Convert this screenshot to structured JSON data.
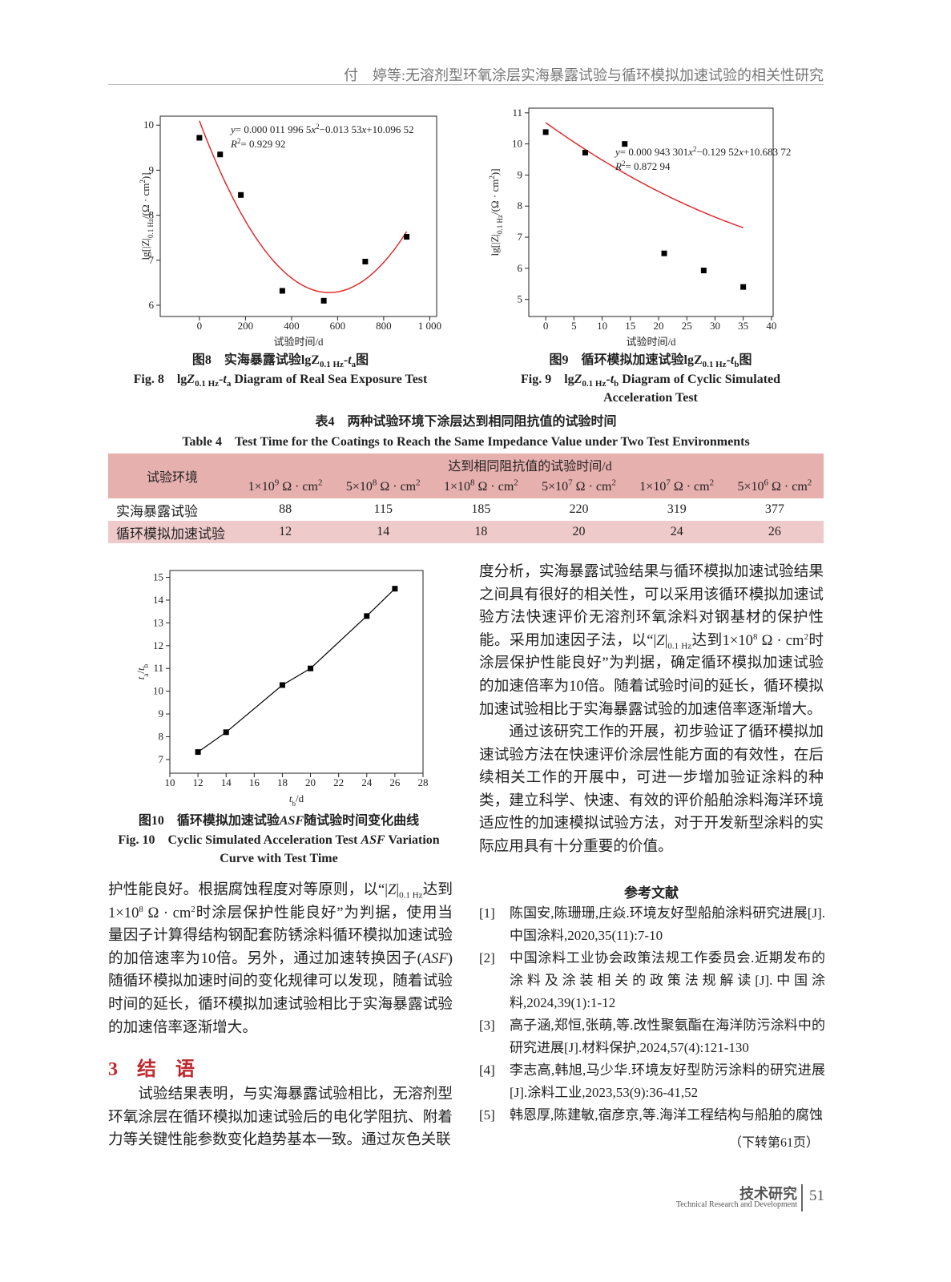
{
  "header": {
    "running_title": "付　婷等:无溶剂型环氧涂层实海暴露试验与循环模拟加速试验的相关性研究"
  },
  "chart_data": [
    {
      "type": "scatter",
      "xlabel": [
        {
          "text": "试验时间/d"
        }
      ],
      "ylabel": [
        {
          "text": "lg[|Z|"
        },
        {
          "text": "0.1 Hz",
          "format": "sub"
        },
        {
          "text": "/(Ω · cm"
        },
        {
          "text": "2",
          "format": "sup"
        },
        {
          "text": ")]"
        }
      ],
      "x": [
        0,
        90,
        180,
        360,
        540,
        720,
        900
      ],
      "values": [
        9.72,
        9.35,
        8.45,
        6.32,
        6.1,
        6.97,
        7.52
      ],
      "color": "#000000",
      "fit": {
        "coefficients": [
          1.19965e-05,
          -0.01353,
          10.09652
        ],
        "color": "#e02020",
        "equation": [
          {
            "text": "y",
            "format": "italic"
          },
          {
            "text": "= 0.000 011 996 5"
          },
          {
            "text": "x",
            "format": "italic"
          },
          {
            "text": "2",
            "format": "sup"
          },
          {
            "text": "−0.013 53"
          },
          {
            "text": "x",
            "format": "italic"
          },
          {
            "text": "+10.096 52"
          }
        ],
        "r2": [
          {
            "text": "R",
            "format": "italic"
          },
          {
            "text": "2",
            "format": "sup"
          },
          {
            "text": "= 0.929 92"
          }
        ]
      },
      "xlim": [
        -170,
        1030
      ],
      "xticks": [
        0,
        200,
        400,
        600,
        800,
        {
          "value": 1000,
          "label": "1 000"
        }
      ],
      "ylim": [
        5.75,
        10.2
      ],
      "yticks": [
        6,
        7,
        8,
        9,
        10
      ]
    },
    {
      "type": "scatter",
      "xlabel": [
        {
          "text": "试验时间/d"
        }
      ],
      "ylabel": [
        {
          "text": "lg[|Z|"
        },
        {
          "text": "0.1 Hz",
          "format": "sub"
        },
        {
          "text": "/(Ω · cm"
        },
        {
          "text": "2",
          "format": "sup"
        },
        {
          "text": ")]"
        }
      ],
      "x": [
        0,
        7,
        14,
        21,
        28,
        35
      ],
      "values": [
        10.38,
        9.72,
        10.0,
        6.48,
        5.93,
        5.4
      ],
      "color": "#000000",
      "fit": {
        "coefficients": [
          0.000943301,
          -0.12952,
          10.68372
        ],
        "color": "#e02020",
        "equation": [
          {
            "text": "y",
            "format": "italic"
          },
          {
            "text": "= 0.000 943 301"
          },
          {
            "text": "x",
            "format": "italic"
          },
          {
            "text": "2",
            "format": "sup"
          },
          {
            "text": "−0.129 52"
          },
          {
            "text": "x",
            "format": "italic"
          },
          {
            "text": "+10.683 72"
          }
        ],
        "r2": [
          {
            "text": "R",
            "format": "italic"
          },
          {
            "text": "2",
            "format": "sup"
          },
          {
            "text": "= 0.872 94"
          }
        ]
      },
      "xlim": [
        -3,
        40.3
      ],
      "xticks": [
        0,
        5,
        10,
        15,
        20,
        25,
        30,
        35,
        40
      ],
      "ylim": [
        4.45,
        11.15
      ],
      "yticks": [
        5,
        6,
        7,
        8,
        9,
        10,
        11
      ]
    },
    {
      "type": "line",
      "xlabel": [
        {
          "text": "t",
          "format": "italic"
        },
        {
          "text": "b",
          "format": "sub"
        },
        {
          "text": "/d"
        }
      ],
      "ylabel": [
        {
          "text": "t",
          "format": "italic"
        },
        {
          "text": "a",
          "format": "sub"
        },
        {
          "text": "/"
        },
        {
          "text": "t",
          "format": "italic"
        },
        {
          "text": "b",
          "format": "sub"
        }
      ],
      "x": [
        12,
        14,
        18,
        20,
        24,
        26
      ],
      "values": [
        7.33,
        8.2,
        10.27,
        11.0,
        13.3,
        14.5
      ],
      "color": "#000000",
      "markers": true,
      "xlim": [
        10,
        28
      ],
      "xticks": [
        10,
        12,
        14,
        16,
        18,
        20,
        22,
        24,
        26,
        28
      ],
      "ylim": [
        6.4,
        15.3
      ],
      "yticks": [
        7,
        8,
        9,
        10,
        11,
        12,
        13,
        14,
        15
      ]
    }
  ],
  "figures": [
    {
      "caption_cn": [
        {
          "text": "图8　实海暴露试验lg"
        },
        {
          "text": "Z"
        },
        {
          "text": "0.1 Hz",
          "format": "sub"
        },
        {
          "text": "-"
        },
        {
          "text": "t",
          "format": "italic"
        },
        {
          "text": "a",
          "format": "sub"
        },
        {
          "text": "图"
        }
      ],
      "caption_en": [
        {
          "text": "Fig. 8　lg"
        },
        {
          "text": "Z",
          "format": "italic"
        },
        {
          "text": "0.1 Hz",
          "format": "sub"
        },
        {
          "text": "-"
        },
        {
          "text": "t",
          "format": "italic"
        },
        {
          "text": "a",
          "format": "sub"
        },
        {
          "text": " Diagram of Real Sea Exposure Test"
        }
      ]
    },
    {
      "caption_cn": [
        {
          "text": "图9　循环模拟加速试验lg"
        },
        {
          "text": "Z"
        },
        {
          "text": "0.1 Hz",
          "format": "sub"
        },
        {
          "text": "-"
        },
        {
          "text": "t",
          "format": "italic"
        },
        {
          "text": "b",
          "format": "sub"
        },
        {
          "text": "图"
        }
      ],
      "caption_en": [
        {
          "text": "Fig. 9　lg"
        },
        {
          "text": "Z",
          "format": "italic"
        },
        {
          "text": "0.1 Hz",
          "format": "sub"
        },
        {
          "text": "-"
        },
        {
          "text": "t",
          "format": "italic"
        },
        {
          "text": "b",
          "format": "sub"
        },
        {
          "text": " Diagram of Cyclic Simulated Acceleration Test"
        }
      ]
    },
    {
      "caption_cn": [
        {
          "text": "图10　循环模拟加速试验"
        },
        {
          "text": "ASF",
          "format": "italic"
        },
        {
          "text": "随试验时间变化曲线"
        }
      ],
      "caption_en": [
        {
          "text": "Fig. 10　Cyclic Simulated Acceleration Test "
        },
        {
          "text": "ASF",
          "format": "italic"
        },
        {
          "text": " Variation Curve with Test Time"
        }
      ]
    }
  ],
  "table": {
    "title_cn": "表4　两种试验环境下涂层达到相同阻抗值的试验时间",
    "title_en": "Table 4　Test Time for the Coatings to Reach the Same Impedance Value under Two Test Environments",
    "row_header": "试验环境",
    "group_header": "达到相同阻抗值的试验时间/d",
    "columns": [
      [
        {
          "text": "1×10"
        },
        {
          "text": "9",
          "format": "sup"
        },
        {
          "text": " Ω · cm"
        },
        {
          "text": "2",
          "format": "sup"
        }
      ],
      [
        {
          "text": "5×10"
        },
        {
          "text": "8",
          "format": "sup"
        },
        {
          "text": " Ω · cm"
        },
        {
          "text": "2",
          "format": "sup"
        }
      ],
      [
        {
          "text": "1×10"
        },
        {
          "text": "8",
          "format": "sup"
        },
        {
          "text": " Ω · cm"
        },
        {
          "text": "2",
          "format": "sup"
        }
      ],
      [
        {
          "text": "5×10"
        },
        {
          "text": "7",
          "format": "sup"
        },
        {
          "text": " Ω · cm"
        },
        {
          "text": "2",
          "format": "sup"
        }
      ],
      [
        {
          "text": "1×10"
        },
        {
          "text": "7",
          "format": "sup"
        },
        {
          "text": " Ω · cm"
        },
        {
          "text": "2",
          "format": "sup"
        }
      ],
      [
        {
          "text": "5×10"
        },
        {
          "text": "6",
          "format": "sup"
        },
        {
          "text": " Ω · cm"
        },
        {
          "text": "2",
          "format": "sup"
        }
      ]
    ],
    "rows": [
      [
        "实海暴露试验",
        88,
        115,
        185,
        220,
        319,
        377
      ],
      [
        "循环模拟加速试验",
        12,
        14,
        18,
        20,
        24,
        26
      ]
    ]
  },
  "body": {
    "right_paragraphs": [
      [
        {
          "text": "度分析，实海暴露试验结果与循环模拟加速试验结果之间具有很好的相关性，可以采用该循环模拟加速试验方法快速评价无溶剂环氧涂料对钢基材的保护性能。采用加速因子法，以“|"
        },
        {
          "text": "Z",
          "format": "italic"
        },
        {
          "text": "|"
        },
        {
          "text": "0.1 Hz",
          "format": "sub"
        },
        {
          "text": "达到1×10"
        },
        {
          "text": "8",
          "format": "sup"
        },
        {
          "text": " Ω · cm"
        },
        {
          "text": "2",
          "format": "sup"
        },
        {
          "text": "时涂层保护性能良好”为判据，确定循环模拟加速试验的加速倍率为10倍。随着试验时间的延长，循环模拟加速试验相比于实海暴露试验的加速倍率逐渐增大。"
        }
      ],
      [
        {
          "text": "通过该研究工作的开展，初步验证了循环模拟加速试验方法在快速评价涂层性能方面的有效性，在后续相关工作的开展中，可进一步增加验证涂料的种类，建立科学、快速、有效的评价船舶涂料海洋环境适应性的加速模拟试验方法，对于开发新型涂料的实际应用具有十分重要的价值。"
        }
      ]
    ],
    "left_paragraph": [
      {
        "text": "护性能良好。根据腐蚀程度对等原则，以“|"
      },
      {
        "text": "Z",
        "format": "italic"
      },
      {
        "text": "|"
      },
      {
        "text": "0.1 Hz",
        "format": "sub"
      },
      {
        "text": "达到1×10"
      },
      {
        "text": "8",
        "format": "sup"
      },
      {
        "text": " Ω · cm"
      },
      {
        "text": "2",
        "format": "sup"
      },
      {
        "text": "时涂层保护性能良好”为判据，使用当量因子计算得结构钢配套防锈涂料循环模拟加速试验的加倍速率为10倍。另外，通过加速转换因子("
      },
      {
        "text": "ASF",
        "format": "italic"
      },
      {
        "text": ")随循环模拟加速时间的变化规律可以发现，随着试验时间的延长，循环模拟加速试验相比于实海暴露试验的加速倍率逐渐增大。"
      }
    ],
    "section_heading": "3　结　语",
    "conclusion": [
      {
        "text": "试验结果表明，与实海暴露试验相比，无溶剂型环氧涂层在循环模拟加速试验后的电化学阻抗、附着力等关键性能参数变化趋势基本一致。通过灰色关联"
      }
    ]
  },
  "references": {
    "heading": "参考文献",
    "items": [
      {
        "label": "[1]",
        "text": "陈国安,陈珊珊,庄焱.环境友好型船舶涂料研究进展[J].中国涂料,2020,35(11):7-10"
      },
      {
        "label": "[2]",
        "text": "中国涂料工业协会政策法规工作委员会.近期发布的涂料及涂装相关的政策法规解读[J].中国涂料,2024,39(1):1-12"
      },
      {
        "label": "[3]",
        "text": "高子涵,郑恒,张萌,等.改性聚氨酯在海洋防污涂料中的研究进展[J].材料保护,2024,57(4):121-130"
      },
      {
        "label": "[4]",
        "text": "李志高,韩旭,马少华.环境友好型防污涂料的研究进展[J].涂料工业,2023,53(9):36-41,52"
      },
      {
        "label": "[5]",
        "text": "韩恩厚,陈建敏,宿彦京,等.海洋工程结构与船舶的腐蚀"
      }
    ],
    "continued": "（下转第61页）"
  },
  "footer": {
    "section_cn": "技术研究",
    "section_en": "Technical Research and Development",
    "page": "51"
  }
}
